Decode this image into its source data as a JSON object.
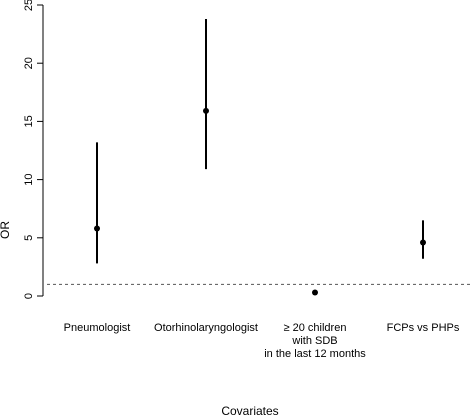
{
  "chart_data": {
    "type": "scatter",
    "title": "",
    "xlabel": "Covariates",
    "ylabel": "OR",
    "ylim": [
      0,
      25
    ],
    "yticks": [
      0,
      5,
      10,
      15,
      20,
      25
    ],
    "grid": false,
    "reference_line": {
      "y": 1,
      "style": "dashed"
    },
    "categories": [
      {
        "lines": [
          "Pneumologist"
        ]
      },
      {
        "lines": [
          "Otorhinolaryngologist"
        ]
      },
      {
        "lines": [
          "≥ 20 children",
          "with SDB",
          "in the last 12 months"
        ]
      },
      {
        "lines": [
          "FCPs vs PHPs"
        ]
      }
    ],
    "points": [
      {
        "or": 5.8,
        "lower": 2.8,
        "upper": 13.2
      },
      {
        "or": 15.9,
        "lower": 10.9,
        "upper": 23.8
      },
      {
        "or": 0.3,
        "lower": 0.2,
        "upper": 0.5
      },
      {
        "or": 4.6,
        "lower": 3.2,
        "upper": 6.5
      }
    ]
  }
}
